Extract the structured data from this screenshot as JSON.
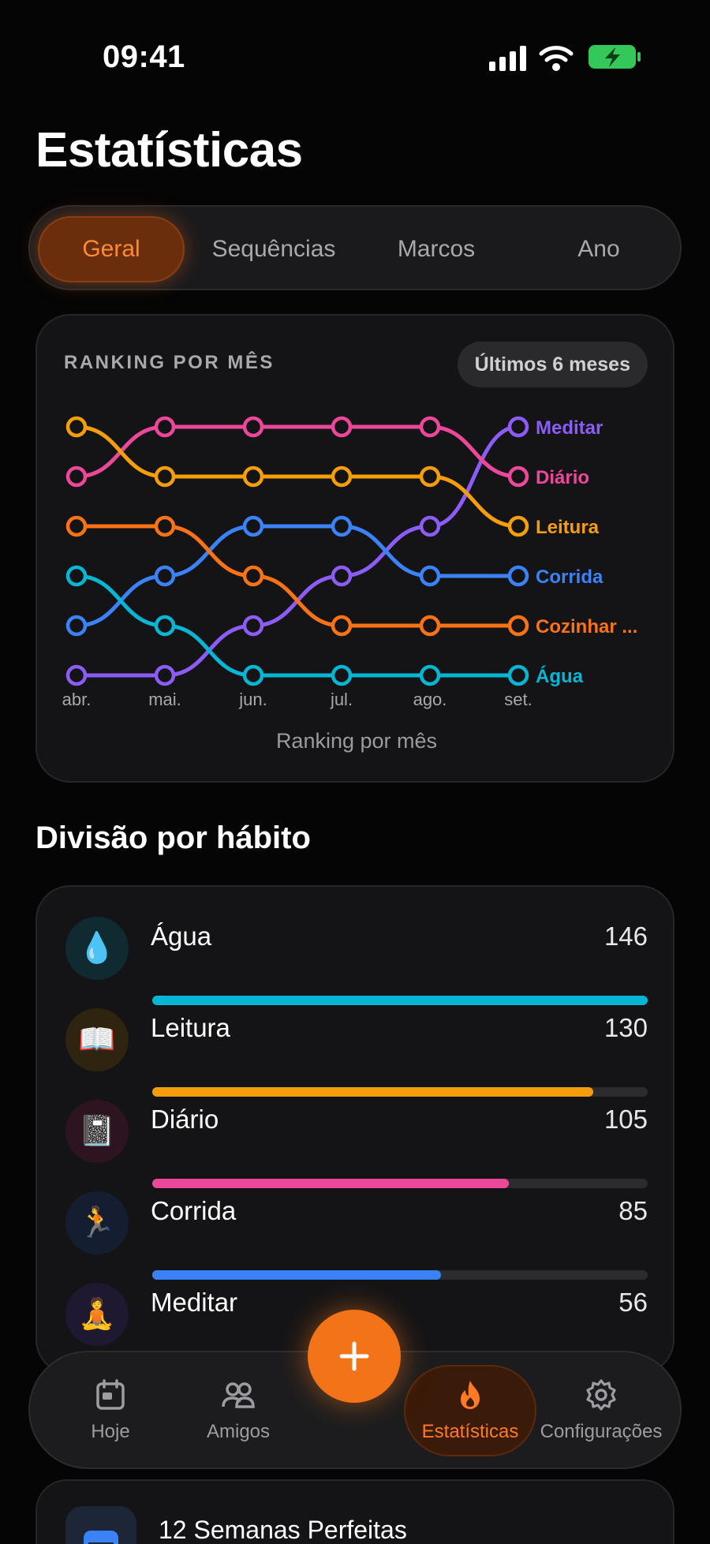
{
  "status": {
    "time": "09:41"
  },
  "page": {
    "title": "Estatísticas"
  },
  "tabs": [
    "Geral",
    "Sequências",
    "Marcos",
    "Ano"
  ],
  "ranking": {
    "title": "RANKING POR MÊS",
    "period_label": "Últimos 6 meses",
    "caption": "Ranking por mês"
  },
  "chart_data": {
    "type": "line",
    "title": "RANKING POR MÊS",
    "subtitle": "Últimos 6 meses",
    "xlabel": "Ranking por mês",
    "ylabel": "",
    "categories": [
      "abr.",
      "mai.",
      "jun.",
      "jul.",
      "ago.",
      "set."
    ],
    "y_reversed": true,
    "ylim": [
      1,
      6
    ],
    "grid": false,
    "series": [
      {
        "name": "Meditar",
        "color": "#8b5cf6",
        "values": [
          6,
          6,
          5,
          4,
          3,
          1
        ]
      },
      {
        "name": "Diário",
        "color": "#ec4899",
        "values": [
          2,
          1,
          1,
          1,
          1,
          2
        ]
      },
      {
        "name": "Leitura",
        "color": "#f59e0b",
        "values": [
          1,
          2,
          2,
          2,
          2,
          3
        ]
      },
      {
        "name": "Corrida",
        "color": "#3b82f6",
        "values": [
          5,
          4,
          3,
          3,
          4,
          4
        ]
      },
      {
        "name": "Cozinhar ...",
        "color": "#f97316",
        "values": [
          3,
          3,
          4,
          5,
          5,
          5
        ]
      },
      {
        "name": "Água",
        "color": "#06b6d4",
        "values": [
          4,
          5,
          6,
          6,
          6,
          6
        ]
      }
    ]
  },
  "division": {
    "title": "Divisão por hábito",
    "max": 146,
    "habits": [
      {
        "name": "Água",
        "value": 146,
        "icon": "💧",
        "color": "#06b6d4",
        "bg": "#0f2a30"
      },
      {
        "name": "Leitura",
        "value": 130,
        "icon": "📖",
        "color": "#f59e0b",
        "bg": "#2e2410"
      },
      {
        "name": "Diário",
        "value": 105,
        "icon": "📓",
        "color": "#ec4899",
        "bg": "#2e1420"
      },
      {
        "name": "Corrida",
        "value": 85,
        "icon": "🏃",
        "color": "#3b82f6",
        "bg": "#141e30"
      },
      {
        "name": "Meditar",
        "value": 56,
        "icon": "🧘",
        "color": "#8b5cf6",
        "bg": "#1e1830"
      }
    ]
  },
  "tabbar": {
    "today": "Hoje",
    "friends": "Amigos",
    "stats": "Estatísticas",
    "settings": "Configurações"
  },
  "peek": {
    "title": "12 Semanas Perfeitas"
  },
  "colors": {
    "accent": "#f27318"
  }
}
